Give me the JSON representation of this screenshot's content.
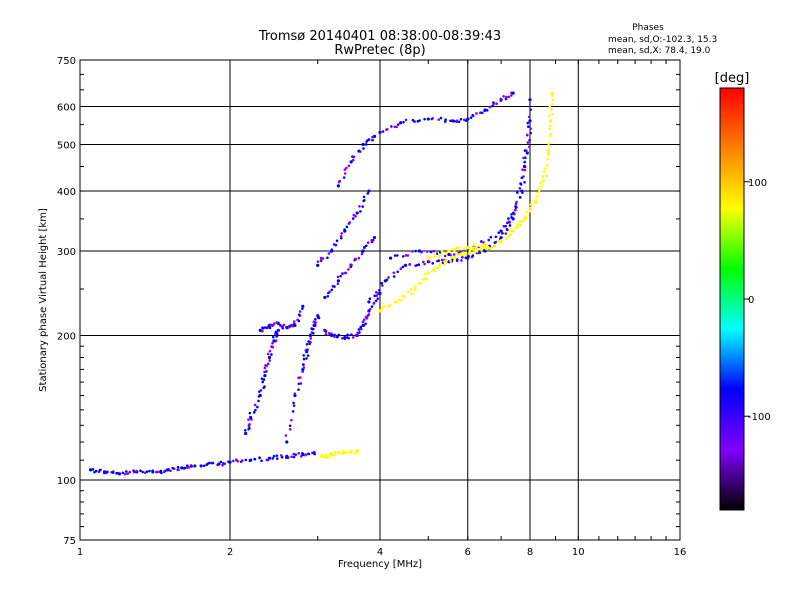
{
  "chart_data": {
    "type": "scatter",
    "title": "Tromsø 20140401 08:38:00-08:39:43",
    "subtitle": "RwPretec (8p)",
    "xlabel": "Frequency [MHz]",
    "ylabel": "Stationary phase Virtual Height [km]",
    "x_scale": "log",
    "y_scale": "log",
    "xlim": [
      1,
      16
    ],
    "ylim": [
      75,
      750
    ],
    "x_ticks": [
      1,
      2,
      4,
      6,
      8,
      10,
      16
    ],
    "y_ticks": [
      75,
      100,
      200,
      300,
      400,
      500,
      600,
      750
    ],
    "grid": true,
    "phases_box": {
      "title": "Phases",
      "line_o": "mean, sd,O:-102.3, 15.3",
      "line_x": "mean, sd,X:  78.4, 19.0"
    },
    "colorbar": {
      "label": "[deg]",
      "range": [
        -180,
        180
      ],
      "ticks": [
        100,
        0,
        -100
      ],
      "colors": [
        "#ff0000",
        "#ff8000",
        "#ffff00",
        "#00ff00",
        "#00ffff",
        "#0000ff",
        "#8000ff",
        "#000000"
      ]
    },
    "series": [
      {
        "name": "O",
        "color_phase": -102,
        "segments": [
          {
            "x": [
              1.05,
              1.12,
              1.2,
              1.3,
              1.4,
              1.5,
              1.6,
              1.7
            ],
            "y": [
              105,
              104,
              103,
              104,
              104,
              105,
              106,
              107
            ]
          },
          {
            "x": [
              1.75,
              1.9,
              2.0,
              2.2,
              2.4,
              2.6,
              2.8,
              2.95
            ],
            "y": [
              107,
              108,
              109,
              110,
              111,
              112,
              113,
              114
            ]
          },
          {
            "x": [
              2.15,
              2.2,
              2.3,
              2.35,
              2.4,
              2.45,
              2.5
            ],
            "y": [
              125,
              135,
              150,
              165,
              180,
              195,
              205
            ]
          },
          {
            "x": [
              2.3,
              2.4,
              2.5,
              2.6,
              2.7,
              2.8
            ],
            "y": [
              205,
              210,
              212,
              208,
              210,
              230
            ]
          },
          {
            "x": [
              2.6,
              2.7,
              2.8,
              2.85,
              2.9,
              2.95,
              3.0
            ],
            "y": [
              120,
              150,
              170,
              185,
              200,
              210,
              220
            ]
          },
          {
            "x": [
              3.1,
              3.2,
              3.4,
              3.6,
              3.7,
              3.8,
              4.0
            ],
            "y": [
              205,
              200,
              198,
              200,
              210,
              225,
              245
            ]
          },
          {
            "x": [
              3.0,
              3.2,
              3.4,
              3.6,
              3.8
            ],
            "y": [
              280,
              300,
              330,
              360,
              400
            ]
          },
          {
            "x": [
              3.3,
              3.5,
              3.7,
              3.9
            ],
            "y": [
              410,
              460,
              500,
              520
            ]
          },
          {
            "x": [
              4.0,
              4.4,
              5.0,
              5.6,
              6.0,
              6.5,
              7.0,
              7.4
            ],
            "y": [
              530,
              555,
              565,
              560,
              565,
              590,
              620,
              640
            ]
          },
          {
            "x": [
              3.8,
              4.1,
              4.5,
              5.0,
              5.5,
              6.0,
              6.5,
              7.0,
              7.4,
              7.7,
              7.9,
              8.0
            ],
            "y": [
              235,
              260,
              280,
              285,
              285,
              290,
              300,
              320,
              350,
              400,
              480,
              560
            ]
          },
          {
            "x": [
              4.2,
              4.8,
              5.5,
              6.2,
              7.0,
              7.5,
              7.8,
              8.0
            ],
            "y": [
              290,
              300,
              295,
              305,
              330,
              370,
              450,
              620
            ]
          },
          {
            "x": [
              3.1,
              3.3,
              3.5,
              3.7,
              3.9
            ],
            "y": [
              240,
              260,
              280,
              300,
              320
            ]
          }
        ]
      },
      {
        "name": "X",
        "color_phase": 78,
        "segments": [
          {
            "x": [
              4.0,
              4.3,
              4.7,
              5.0,
              5.4,
              5.8,
              6.2,
              6.6,
              7.0,
              7.4,
              7.8,
              8.2,
              8.5,
              8.7,
              8.8,
              8.85
            ],
            "y": [
              225,
              235,
              250,
              270,
              285,
              295,
              300,
              305,
              315,
              330,
              350,
              380,
              420,
              480,
              560,
              640
            ]
          },
          {
            "x": [
              3.05,
              3.2,
              3.4,
              3.6
            ],
            "y": [
              112,
              113,
              114,
              115
            ]
          },
          {
            "x": [
              5.0,
              5.5,
              6.0,
              6.5
            ],
            "y": [
              290,
              300,
              305,
              310
            ]
          }
        ]
      }
    ]
  }
}
